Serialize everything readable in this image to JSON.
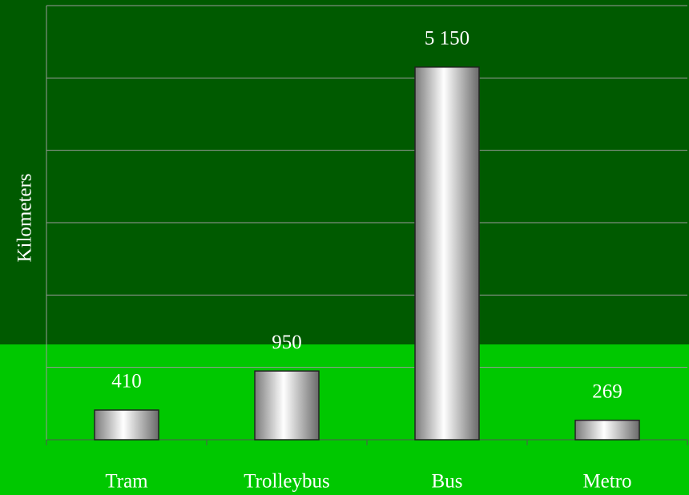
{
  "chart_data": {
    "type": "bar",
    "y_label": "Kilometers",
    "categories": [
      "Tram",
      "Trolleybus",
      "Bus",
      "Metro"
    ],
    "values": [
      410,
      950,
      5150,
      269
    ],
    "value_labels": [
      "410",
      "950",
      "5 150",
      "269"
    ],
    "ylim": [
      0,
      6000
    ],
    "yticks": [
      0,
      1000,
      2000,
      3000,
      4000,
      5000,
      6000
    ],
    "grid": true
  }
}
